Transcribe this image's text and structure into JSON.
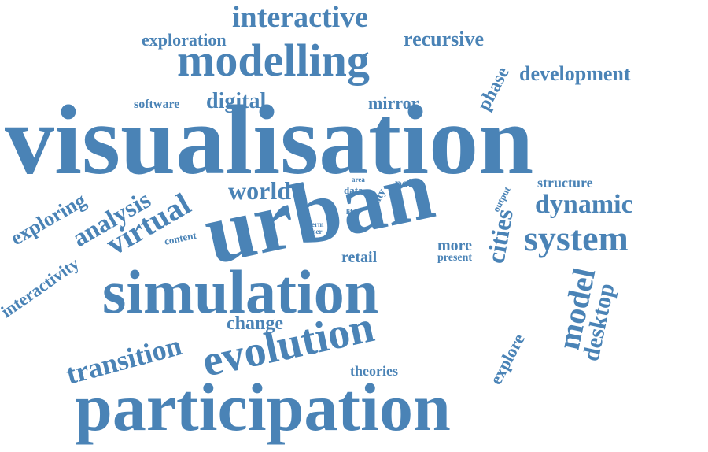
{
  "color": "#4a83b6",
  "words": {
    "interactive": "interactive",
    "exploration": "exploration",
    "recursive": "recursive",
    "modelling": "modelling",
    "development": "development",
    "phase": "phase",
    "software": "software",
    "digital": "digital",
    "mirror": "mirror",
    "visualisation": "visualisation",
    "exploring": "exploring",
    "analysis": "analysis",
    "virtual": "virtual",
    "world": "world",
    "area": "area",
    "data": "data",
    "city": "city",
    "point": "point",
    "output": "output",
    "structure": "structure",
    "dynamic": "dynamic",
    "urban": "urban",
    "life": "life",
    "term": "term",
    "user": "user",
    "content": "content",
    "cities": "cities",
    "system": "system",
    "interactivity": "interactivity",
    "more": "more",
    "present": "present",
    "retail": "retail",
    "simulation": "simulation",
    "model": "model",
    "desktop": "desktop",
    "transition": "transition",
    "change": "change",
    "evolution": "evolution",
    "explore": "explore",
    "theories": "theories",
    "participation": "participation"
  }
}
